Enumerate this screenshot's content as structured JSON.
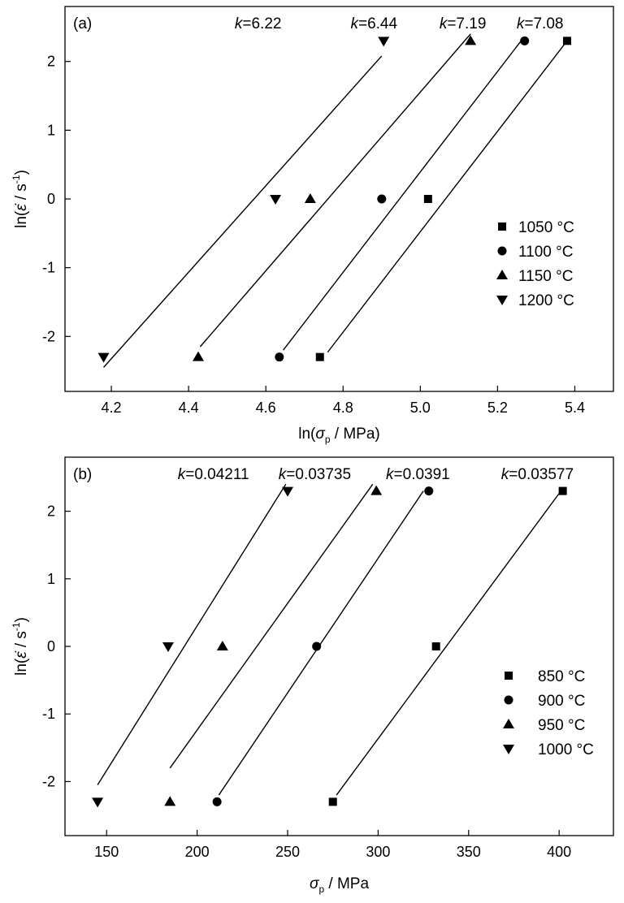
{
  "chart_data": [
    {
      "type": "scatter",
      "panel_label": "(a)",
      "xlabel": {
        "pre": "ln(",
        "sym": "σ",
        "sub": "p",
        "post": " / MPa)"
      },
      "ylabel": {
        "pre": "ln(",
        "sym": "ε̇",
        "mid": " / s",
        "sup": "-1",
        "post": ")"
      },
      "xlim": [
        4.08,
        5.5
      ],
      "ylim": [
        -2.8,
        2.8
      ],
      "xticks": [
        4.2,
        4.4,
        4.6,
        4.8,
        5.0,
        5.2,
        5.4
      ],
      "xtick_labels": [
        "4.2",
        "4.4",
        "4.6",
        "4.8",
        "5.0",
        "5.2",
        "5.4"
      ],
      "yticks": [
        -2,
        -1,
        0,
        1,
        2
      ],
      "ytick_labels": [
        "-2",
        "-1",
        "0",
        "1",
        "2"
      ],
      "grid": false,
      "legend_position": "right",
      "series": [
        {
          "name": "1050 °C",
          "marker": "square",
          "x": [
            4.74,
            5.02,
            5.38
          ],
          "y": [
            -2.3,
            0,
            2.3
          ],
          "fit": {
            "x": [
              4.76,
              5.38
            ],
            "y": [
              -2.23,
              2.3
            ]
          },
          "k": "=7.08",
          "k_x": 5.31
        },
        {
          "name": "1100 °C",
          "marker": "circle",
          "x": [
            4.635,
            4.9,
            5.27
          ],
          "y": [
            -2.3,
            0,
            2.3
          ],
          "fit": {
            "x": [
              4.645,
              5.265
            ],
            "y": [
              -2.2,
              2.33
            ]
          },
          "k": "=7.19",
          "k_x": 5.11
        },
        {
          "name": "1150 °C",
          "marker": "triangle-up",
          "x": [
            4.425,
            4.715,
            5.13
          ],
          "y": [
            -2.3,
            0,
            2.3
          ],
          "fit": {
            "x": [
              4.43,
              5.13
            ],
            "y": [
              -2.15,
              2.4
            ]
          },
          "k": "=6.44",
          "k_x": 4.88
        },
        {
          "name": "1200 °C",
          "marker": "triangle-down",
          "x": [
            4.18,
            4.625,
            4.905
          ],
          "y": [
            -2.3,
            0,
            2.3
          ],
          "fit": {
            "x": [
              4.18,
              4.9
            ],
            "y": [
              -2.45,
              2.08
            ]
          },
          "k": "=6.22",
          "k_x": 4.58
        }
      ]
    },
    {
      "type": "scatter",
      "panel_label": "(b)",
      "xlabel": {
        "pre": "",
        "sym": "σ",
        "sub": "p",
        "post": " / MPa"
      },
      "ylabel": {
        "pre": "ln(",
        "sym": "ε̇",
        "mid": " / s",
        "sup": "-1",
        "post": ")"
      },
      "xlim": [
        127,
        430
      ],
      "ylim": [
        -2.8,
        2.8
      ],
      "xticks": [
        150,
        200,
        250,
        300,
        350,
        400
      ],
      "xtick_labels": [
        "150",
        "200",
        "250",
        "300",
        "350",
        "400"
      ],
      "yticks": [
        -2,
        -1,
        0,
        1,
        2
      ],
      "ytick_labels": [
        "-2",
        "-1",
        "0",
        "1",
        "2"
      ],
      "grid": false,
      "legend_position": "right",
      "series": [
        {
          "name": "850 °C",
          "marker": "square",
          "x": [
            275,
            332,
            402
          ],
          "y": [
            -2.3,
            0,
            2.3
          ],
          "fit": {
            "x": [
              277,
              401
            ],
            "y": [
              -2.2,
              2.3
            ]
          },
          "k": "=0.03577",
          "k_x": 388
        },
        {
          "name": "900 °C",
          "marker": "circle",
          "x": [
            211,
            266,
            328
          ],
          "y": [
            -2.3,
            0,
            2.3
          ],
          "fit": {
            "x": [
              212,
              325
            ],
            "y": [
              -2.2,
              2.3
            ]
          },
          "k": "=0.0391",
          "k_x": 322
        },
        {
          "name": "950 °C",
          "marker": "triangle-up",
          "x": [
            185,
            214,
            299
          ],
          "y": [
            -2.3,
            0,
            2.3
          ],
          "fit": {
            "x": [
              185,
              297
            ],
            "y": [
              -1.8,
              2.4
            ]
          },
          "k": "=0.03735",
          "k_x": 265
        },
        {
          "name": "1000 °C",
          "marker": "triangle-down",
          "x": [
            145,
            184,
            250
          ],
          "y": [
            -2.3,
            0,
            2.3
          ],
          "fit": {
            "x": [
              145,
              249
            ],
            "y": [
              -2.05,
              2.4
            ]
          },
          "k": "=0.04211",
          "k_x": 209
        }
      ]
    }
  ]
}
